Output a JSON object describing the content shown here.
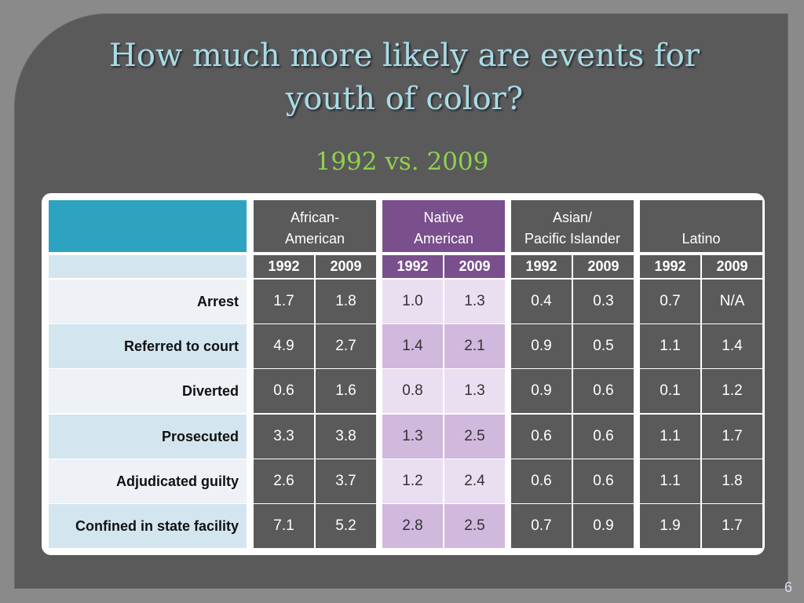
{
  "title": "How much more likely are events for youth of color?",
  "title_line1": "How much more likely are events for",
  "title_line2": "youth of color?",
  "subtitle": "1992 vs. 2009",
  "page_number": "6",
  "groups": [
    {
      "line1": "African-",
      "line2": "American"
    },
    {
      "line1": "Native",
      "line2": "American"
    },
    {
      "line1": "Asian/",
      "line2": "Pacific Islander"
    },
    {
      "line1": "",
      "line2": "Latino"
    }
  ],
  "years": [
    "1992",
    "2009",
    "1992",
    "2009",
    "1992",
    "2009",
    "1992",
    "2009"
  ],
  "rows": [
    {
      "label": "Arrest",
      "values": [
        "1.7",
        "1.8",
        "1.0",
        "1.3",
        "0.4",
        "0.3",
        "0.7",
        "N/A"
      ]
    },
    {
      "label": "Referred to court",
      "values": [
        "4.9",
        "2.7",
        "1.4",
        "2.1",
        "0.9",
        "0.5",
        "1.1",
        "1.4"
      ]
    },
    {
      "label": "Diverted",
      "values": [
        "0.6",
        "1.6",
        "0.8",
        "1.3",
        "0.9",
        "0.6",
        "0.1",
        "1.2"
      ]
    },
    {
      "label": "Prosecuted",
      "values": [
        "3.3",
        "3.8",
        "1.3",
        "2.5",
        "0.6",
        "0.6",
        "1.1",
        "1.7"
      ]
    },
    {
      "label": "Adjudicated guilty",
      "values": [
        "2.6",
        "3.7",
        "1.2",
        "2.4",
        "0.6",
        "0.6",
        "1.1",
        "1.8"
      ]
    },
    {
      "label": "Confined in state facility",
      "values": [
        "7.1",
        "5.2",
        "2.8",
        "2.5",
        "0.7",
        "0.9",
        "1.9",
        "1.7"
      ]
    }
  ],
  "colors": {
    "header_corner": "#2ea3c1",
    "dark_cell": "#5a5a5a",
    "native_header": "#7a4f8d",
    "native_light_cell": "#eadff0",
    "native_dark_cell": "#d1b8dd",
    "label_light": "#eef1f6",
    "label_dark": "#d3e5ef"
  }
}
